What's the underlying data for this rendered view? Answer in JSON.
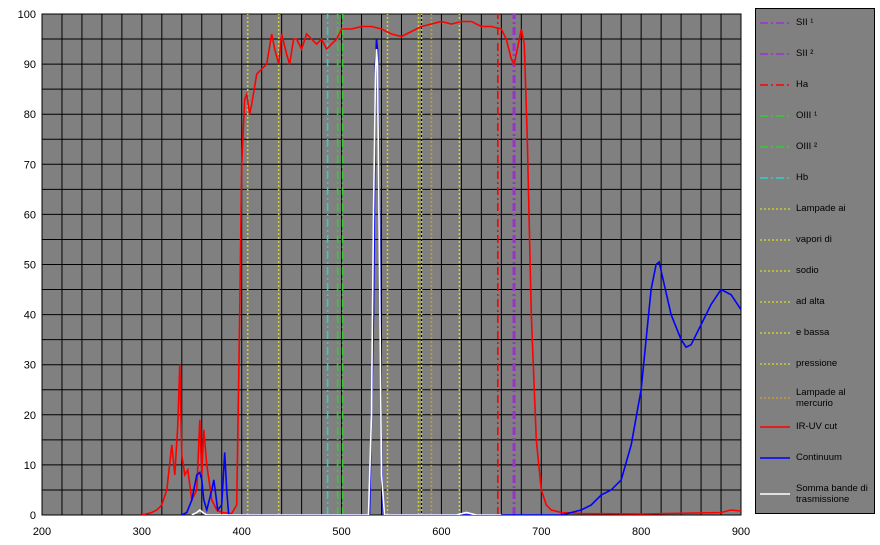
{
  "chart_data": {
    "type": "line",
    "xlim": [
      200,
      900
    ],
    "ylim": [
      0,
      100
    ],
    "xticks": [
      200,
      300,
      400,
      500,
      600,
      700,
      800,
      900
    ],
    "yticks": [
      0,
      10,
      20,
      30,
      40,
      50,
      60,
      70,
      80,
      90,
      100
    ],
    "xgrid": [
      220,
      240,
      260,
      280,
      320,
      340,
      360,
      380,
      420,
      440,
      460,
      480,
      520,
      540,
      560,
      580,
      620,
      640,
      660,
      680,
      720,
      740,
      760,
      780,
      820,
      840,
      860,
      880
    ],
    "ygrid": [
      5,
      15,
      25,
      35,
      45,
      55,
      65,
      75,
      85,
      95
    ],
    "grid": true,
    "background": "#808080",
    "legend": "right",
    "series": [
      {
        "name": "SII ¹",
        "color": "#9933cc",
        "dash": "8 3 2 3",
        "x": [
          672,
          672
        ],
        "values": [
          0,
          100
        ]
      },
      {
        "name": "SII ²",
        "color": "#9933cc",
        "dash": "8 3 2 3",
        "x": [
          673.5,
          673.5
        ],
        "values": [
          0,
          100
        ]
      },
      {
        "name": "Ha",
        "color": "#ff0000",
        "dash": "8 3 2 3",
        "x": [
          656.5,
          656.5
        ],
        "values": [
          0,
          100
        ]
      },
      {
        "name": "OIII ¹",
        "color": "#33cc33",
        "dash": "8 3 2 3",
        "x": [
          496,
          496
        ],
        "values": [
          0,
          100
        ]
      },
      {
        "name": "OIII ²",
        "color": "#33cc33",
        "dash": "8 3 2 3",
        "x": [
          501,
          501
        ],
        "values": [
          0,
          100
        ]
      },
      {
        "name": "Hb",
        "color": "#33cccc",
        "dash": "8 3 2 3",
        "x": [
          486,
          486
        ],
        "values": [
          0,
          100
        ]
      },
      {
        "name": "Lampade ai",
        "color": "#cccc33",
        "dash": "2 2",
        "x": [
          406,
          406
        ],
        "values": [
          0,
          100
        ]
      },
      {
        "name": "vapori di",
        "color": "#cccc33",
        "dash": "2 2",
        "x": [
          437,
          437
        ],
        "values": [
          0,
          100
        ]
      },
      {
        "name": "sodio",
        "color": "#cccc33",
        "dash": "2 2",
        "x": [
          546,
          546
        ],
        "values": [
          0,
          100
        ]
      },
      {
        "name": "ad alta",
        "color": "#cccc33",
        "dash": "2 2",
        "x": [
          577,
          577
        ],
        "values": [
          0,
          100
        ]
      },
      {
        "name": "e bassa",
        "color": "#cccc33",
        "dash": "2 2",
        "x": [
          580,
          580
        ],
        "values": [
          0,
          100
        ]
      },
      {
        "name": "pressione",
        "color": "#cccc33",
        "dash": "2 2",
        "x": [
          618,
          618
        ],
        "values": [
          0,
          100
        ]
      },
      {
        "name": "Lampade al mercurio",
        "color": "#cc9933",
        "dash": "2 2",
        "x": [
          590,
          590
        ],
        "values": [
          0,
          100
        ]
      },
      {
        "name": "IR-UV cut",
        "color": "#ff0000",
        "dash": "",
        "x": [
          300,
          310,
          315,
          320,
          325,
          330,
          333,
          336,
          338,
          340,
          343,
          346,
          350,
          355,
          358,
          360,
          362,
          365,
          370,
          375,
          380,
          390,
          395,
          398,
          400,
          403,
          405,
          408,
          410,
          415,
          420,
          425,
          430,
          433,
          437,
          440,
          445,
          448,
          452,
          455,
          460,
          465,
          470,
          475,
          480,
          485,
          490,
          495,
          500,
          510,
          520,
          530,
          540,
          550,
          560,
          570,
          580,
          590,
          600,
          610,
          620,
          630,
          640,
          650,
          660,
          665,
          670,
          673,
          676,
          680,
          683,
          686,
          690,
          695,
          700,
          705,
          710,
          720,
          740,
          800,
          880,
          890,
          900
        ],
        "values": [
          0,
          0.5,
          1,
          2,
          5,
          14,
          8,
          18,
          30,
          12,
          8,
          9,
          3,
          5,
          19,
          8,
          17,
          10,
          3,
          1,
          0.5,
          0.3,
          2,
          40,
          70,
          83,
          84,
          80,
          82,
          88,
          89,
          90,
          96,
          93,
          90,
          96,
          92,
          90,
          95,
          95,
          93,
          96,
          95,
          94,
          95,
          93,
          94,
          95,
          97,
          97,
          97.5,
          97.5,
          97,
          96,
          95.5,
          96.5,
          97.5,
          98,
          98.5,
          98,
          98.5,
          98.5,
          97.5,
          97.5,
          97,
          95,
          91,
          90,
          93,
          97,
          94,
          75,
          40,
          15,
          5,
          2,
          1,
          0.5,
          0.3,
          0.2,
          0.5,
          1,
          0.8
        ]
      },
      {
        "name": "Continuum",
        "color": "#0000ff",
        "dash": "",
        "x": [
          340,
          345,
          350,
          355,
          358,
          360,
          362,
          365,
          370,
          372,
          374,
          376,
          380,
          383,
          385,
          387,
          528,
          532,
          534,
          535,
          536,
          538,
          540,
          542,
          720,
          730,
          740,
          750,
          760,
          770,
          780,
          790,
          800,
          805,
          810,
          815,
          818,
          822,
          830,
          840,
          845,
          850,
          860,
          870,
          880,
          890,
          900
        ],
        "values": [
          0,
          0.5,
          3,
          8,
          8.5,
          7,
          3,
          1,
          5,
          7,
          4,
          1,
          2,
          12.5,
          5,
          0,
          0,
          40,
          90,
          95,
          93,
          60,
          10,
          0,
          0,
          0.5,
          1,
          2,
          4,
          5,
          7,
          14,
          25,
          35,
          45,
          50,
          50.5,
          47,
          40,
          35,
          33.5,
          34,
          38,
          42,
          45,
          44,
          41
        ]
      },
      {
        "name": "Somma bande di trasmissione",
        "color": "#ffffff",
        "dash": "",
        "x": [
          350,
          355,
          358,
          361,
          365,
          527,
          530,
          532,
          534,
          535,
          536,
          538,
          540,
          543,
          615,
          625,
          635,
          660
        ],
        "values": [
          0,
          0.5,
          1,
          0.5,
          0,
          0,
          20,
          60,
          88,
          93,
          90,
          50,
          8,
          0,
          0,
          0.5,
          0,
          0
        ]
      }
    ]
  }
}
